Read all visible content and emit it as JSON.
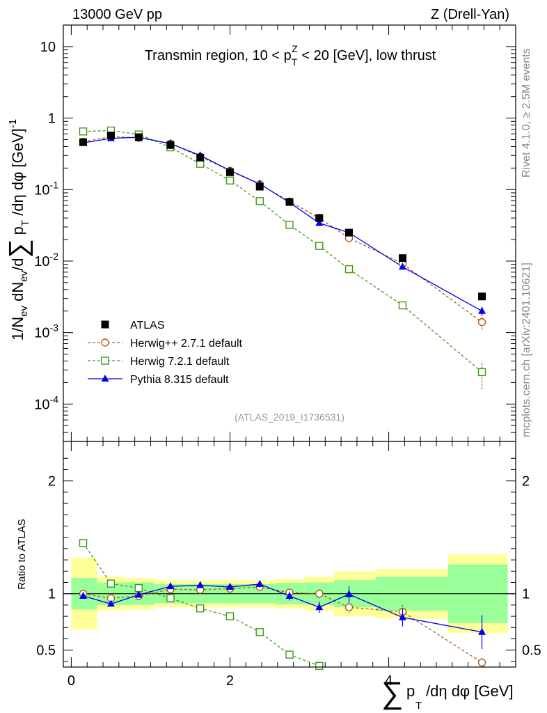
{
  "header": {
    "left": "13000 GeV pp",
    "right": "Z (Drell-Yan)"
  },
  "side_labels": {
    "rivet": "Rivet 4.1.0, ≥ 2.5M events",
    "mcplots": "mcplots.cern.ch [arXiv:2401.10621]"
  },
  "chart_data": {
    "type": "line",
    "title": "Transmin region, 10 < p_T^Z < 20 [GeV], low thrust",
    "analysis_id": "(ATLAS_2019_I1736531)",
    "xlabel": "∑ p_T /dη dφ [GeV]",
    "ylabel": "1/N_ev dN_ev/d∑ p_T /dη dφ [GeV]^-1",
    "xlim": [
      -0.1,
      5.6
    ],
    "ylim": [
      3e-05,
      20
    ],
    "yscale": "log",
    "x_ticks": [
      0,
      2,
      4
    ],
    "y_ticks": [
      "10^-4",
      "10^-3",
      "10^-2",
      "10^-1",
      "1",
      "10"
    ],
    "x": [
      0.15,
      0.5,
      0.85,
      1.25,
      1.625,
      2.0,
      2.375,
      2.75,
      3.125,
      3.5,
      4.175,
      5.175
    ],
    "reference": {
      "name": "ATLAS",
      "values": [
        0.46,
        0.57,
        0.54,
        0.42,
        0.28,
        0.175,
        0.11,
        0.067,
        0.04,
        0.025,
        0.011,
        0.0032
      ],
      "ratio_band_inner": [
        0.14,
        0.1,
        0.1,
        0.085,
        0.085,
        0.085,
        0.085,
        0.095,
        0.1,
        0.12,
        0.15,
        0.26
      ],
      "ratio_band_outer": [
        0.32,
        0.15,
        0.14,
        0.12,
        0.12,
        0.12,
        0.12,
        0.13,
        0.15,
        0.2,
        0.22,
        0.35
      ]
    },
    "series": [
      {
        "name": "Herwig++ 2.7.1 default",
        "color": "#b25d1a",
        "marker": "open-circle",
        "dash": true,
        "values": [
          0.465,
          0.55,
          0.53,
          0.44,
          0.29,
          0.183,
          0.119,
          0.068,
          0.04,
          0.021,
          0.0092,
          0.0014
        ],
        "ratio": [
          1.0,
          0.96,
          0.98,
          1.04,
          1.035,
          1.045,
          1.06,
          1.01,
          1.0,
          0.88,
          0.84,
          0.39
        ],
        "ratio_err": [
          0.02,
          0.02,
          0.02,
          0.02,
          0.02,
          0.02,
          0.02,
          0.03,
          0.04,
          0.05,
          0.06,
          0.04
        ]
      },
      {
        "name": "Herwig 7.2.1 default",
        "color": "#3f9a1a",
        "marker": "open-square",
        "dash": true,
        "values": [
          0.65,
          0.67,
          0.59,
          0.39,
          0.23,
          0.134,
          0.069,
          0.032,
          0.0163,
          0.0077,
          0.0024,
          0.00028
        ],
        "ratio": [
          1.45,
          1.09,
          1.05,
          0.96,
          0.87,
          0.8,
          0.66,
          0.46,
          0.36,
          null,
          null,
          null
        ],
        "ratio_err": [
          0.02,
          0.02,
          0.02,
          0.02,
          0.02,
          0.02,
          0.03,
          0.03,
          0.03,
          null,
          null,
          null
        ]
      },
      {
        "name": "Pythia 8.315 default",
        "color": "#0000ee",
        "marker": "filled-triangle",
        "dash": false,
        "values": [
          0.45,
          0.52,
          0.54,
          0.44,
          0.3,
          0.185,
          0.12,
          0.066,
          0.034,
          0.025,
          0.0083,
          0.002
        ],
        "ratio": [
          0.98,
          0.91,
          0.99,
          1.065,
          1.075,
          1.06,
          1.085,
          0.98,
          0.88,
          0.995,
          0.79,
          0.66
        ],
        "ratio_err": [
          0.02,
          0.02,
          0.02,
          0.02,
          0.025,
          0.025,
          0.03,
          0.04,
          0.05,
          0.07,
          0.08,
          0.15
        ]
      }
    ],
    "ratio_panel": {
      "ylabel": "Ratio to ATLAS",
      "ylim": [
        0.35,
        2.35
      ],
      "y_ticks": [
        0.5,
        1,
        2
      ]
    },
    "legend_position": "bottom-left"
  }
}
